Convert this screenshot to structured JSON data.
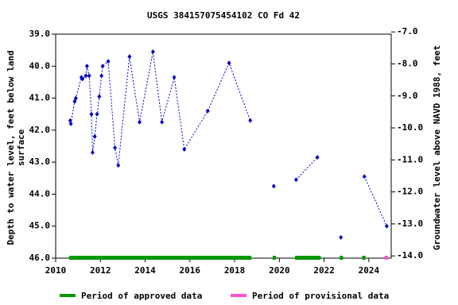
{
  "chart_data": {
    "type": "line",
    "title": "USGS 384157075454102 CO Fd  42",
    "ylabel": [
      "Depth to water level, feet below land",
      "surface"
    ],
    "y2label": "Groundwater level above NAVD 1988, feet",
    "xlim": [
      2010,
      2025
    ],
    "xticks": [
      2010,
      2012,
      2014,
      2016,
      2018,
      2020,
      2022,
      2024
    ],
    "ylim": [
      39.0,
      46.0
    ],
    "inverted_y": true,
    "yticks": [
      {
        "value": 39,
        "label": "39.0"
      },
      {
        "value": 40,
        "label": "40.0"
      },
      {
        "value": 41,
        "label": "41.0"
      },
      {
        "value": 42,
        "label": "42.0"
      },
      {
        "value": 43,
        "label": "43.0"
      },
      {
        "value": 44,
        "label": "44.0"
      },
      {
        "value": 45,
        "label": "45.0"
      },
      {
        "value": 46,
        "label": "46.0"
      }
    ],
    "y2lim": [
      -14.07,
      -7.07
    ],
    "y2ticks": [
      {
        "value": -7,
        "label": "-7.0"
      },
      {
        "value": -8,
        "label": "-8.0"
      },
      {
        "value": -9,
        "label": "-9.0"
      },
      {
        "value": -10,
        "label": "-10.0"
      },
      {
        "value": -11,
        "label": "-11.0"
      },
      {
        "value": -12,
        "label": "-12.0"
      },
      {
        "value": -13,
        "label": "-13.0"
      },
      {
        "value": -14,
        "label": "-14.0"
      }
    ],
    "series": [
      {
        "color": "#0000cc",
        "x": [
          2010.65,
          2010.68,
          2010.85,
          2010.9,
          2011.15,
          2011.2,
          2011.35,
          2011.4,
          2011.5,
          2011.6,
          2011.65,
          2011.75,
          2011.85,
          2011.95,
          2012.05,
          2012.1,
          2012.35,
          2012.65,
          2012.8,
          2013.3,
          2013.75,
          2014.35,
          2014.75,
          2015.3,
          2015.75,
          2016.8,
          2017.75,
          2018.7,
          null,
          2019.75,
          null,
          2020.75,
          2021.7,
          null,
          2022.75,
          null,
          2023.8,
          2024.8
        ],
        "values": [
          41.7,
          41.8,
          41.1,
          41.0,
          40.35,
          40.4,
          40.3,
          40.0,
          40.3,
          41.5,
          42.7,
          42.2,
          41.5,
          40.95,
          40.3,
          40.0,
          39.85,
          42.55,
          43.1,
          39.7,
          41.75,
          39.55,
          41.75,
          40.35,
          42.6,
          41.4,
          39.9,
          41.7,
          null,
          43.75,
          null,
          43.55,
          42.85,
          null,
          45.35,
          null,
          43.45,
          45.0
        ]
      }
    ],
    "legend": [
      {
        "name": "Period of approved data",
        "color": "#009900",
        "periods": [
          [
            2010.6,
            2018.75
          ],
          [
            2019.7,
            2019.85
          ],
          [
            2020.7,
            2021.85
          ],
          [
            2022.7,
            2022.85
          ],
          [
            2023.7,
            2023.85
          ]
        ]
      },
      {
        "name": "Period of provisional data",
        "color": "#ff55cc",
        "periods": [
          [
            2024.7,
            2024.85
          ]
        ]
      }
    ]
  }
}
